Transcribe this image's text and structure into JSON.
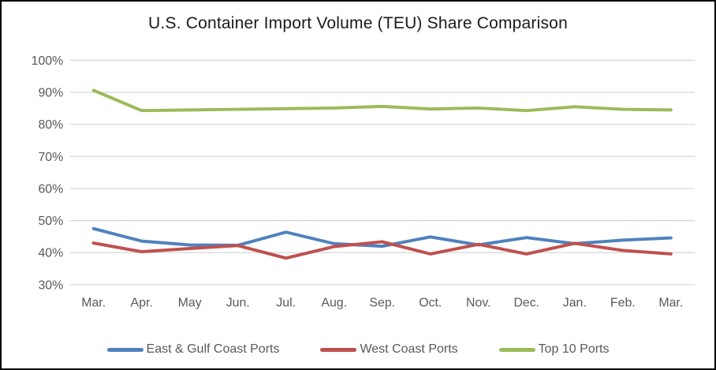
{
  "chart_data": {
    "type": "line",
    "title": "U.S. Container Import Volume (TEU) Share Comparison",
    "categories": [
      "Mar.",
      "Apr.",
      "May",
      "Jun.",
      "Jul.",
      "Aug.",
      "Sep.",
      "Oct.",
      "Nov.",
      "Dec.",
      "Jan.",
      "Feb.",
      "Mar."
    ],
    "series": [
      {
        "name": "East & Gulf Coast Ports",
        "color": "#4F81BD",
        "values": [
          47.5,
          43.6,
          42.4,
          42.3,
          46.4,
          42.8,
          42.0,
          44.9,
          42.4,
          44.7,
          42.8,
          43.9,
          44.6
        ]
      },
      {
        "name": "West Coast Ports",
        "color": "#C0504D",
        "values": [
          43.0,
          40.3,
          41.3,
          42.2,
          38.3,
          41.9,
          43.4,
          39.6,
          42.6,
          39.6,
          42.9,
          40.7,
          39.6
        ]
      },
      {
        "name": "Top 10 Ports",
        "color": "#9BBB59",
        "values": [
          90.6,
          84.3,
          84.5,
          84.7,
          84.9,
          85.1,
          85.6,
          84.8,
          85.1,
          84.3,
          85.5,
          84.7,
          84.5
        ]
      }
    ],
    "y_ticks": [
      "100%",
      "90%",
      "80%",
      "70%",
      "60%",
      "50%",
      "40%",
      "30%"
    ],
    "ylim": [
      30,
      100
    ],
    "xlabel": "",
    "ylabel": "",
    "grid": "horizontal",
    "legend_position": "bottom",
    "colors": {
      "gridline": "#D6D6D6",
      "tick_label": "#595959",
      "title": "#1a1a1a",
      "frame_border": "#000000"
    }
  }
}
